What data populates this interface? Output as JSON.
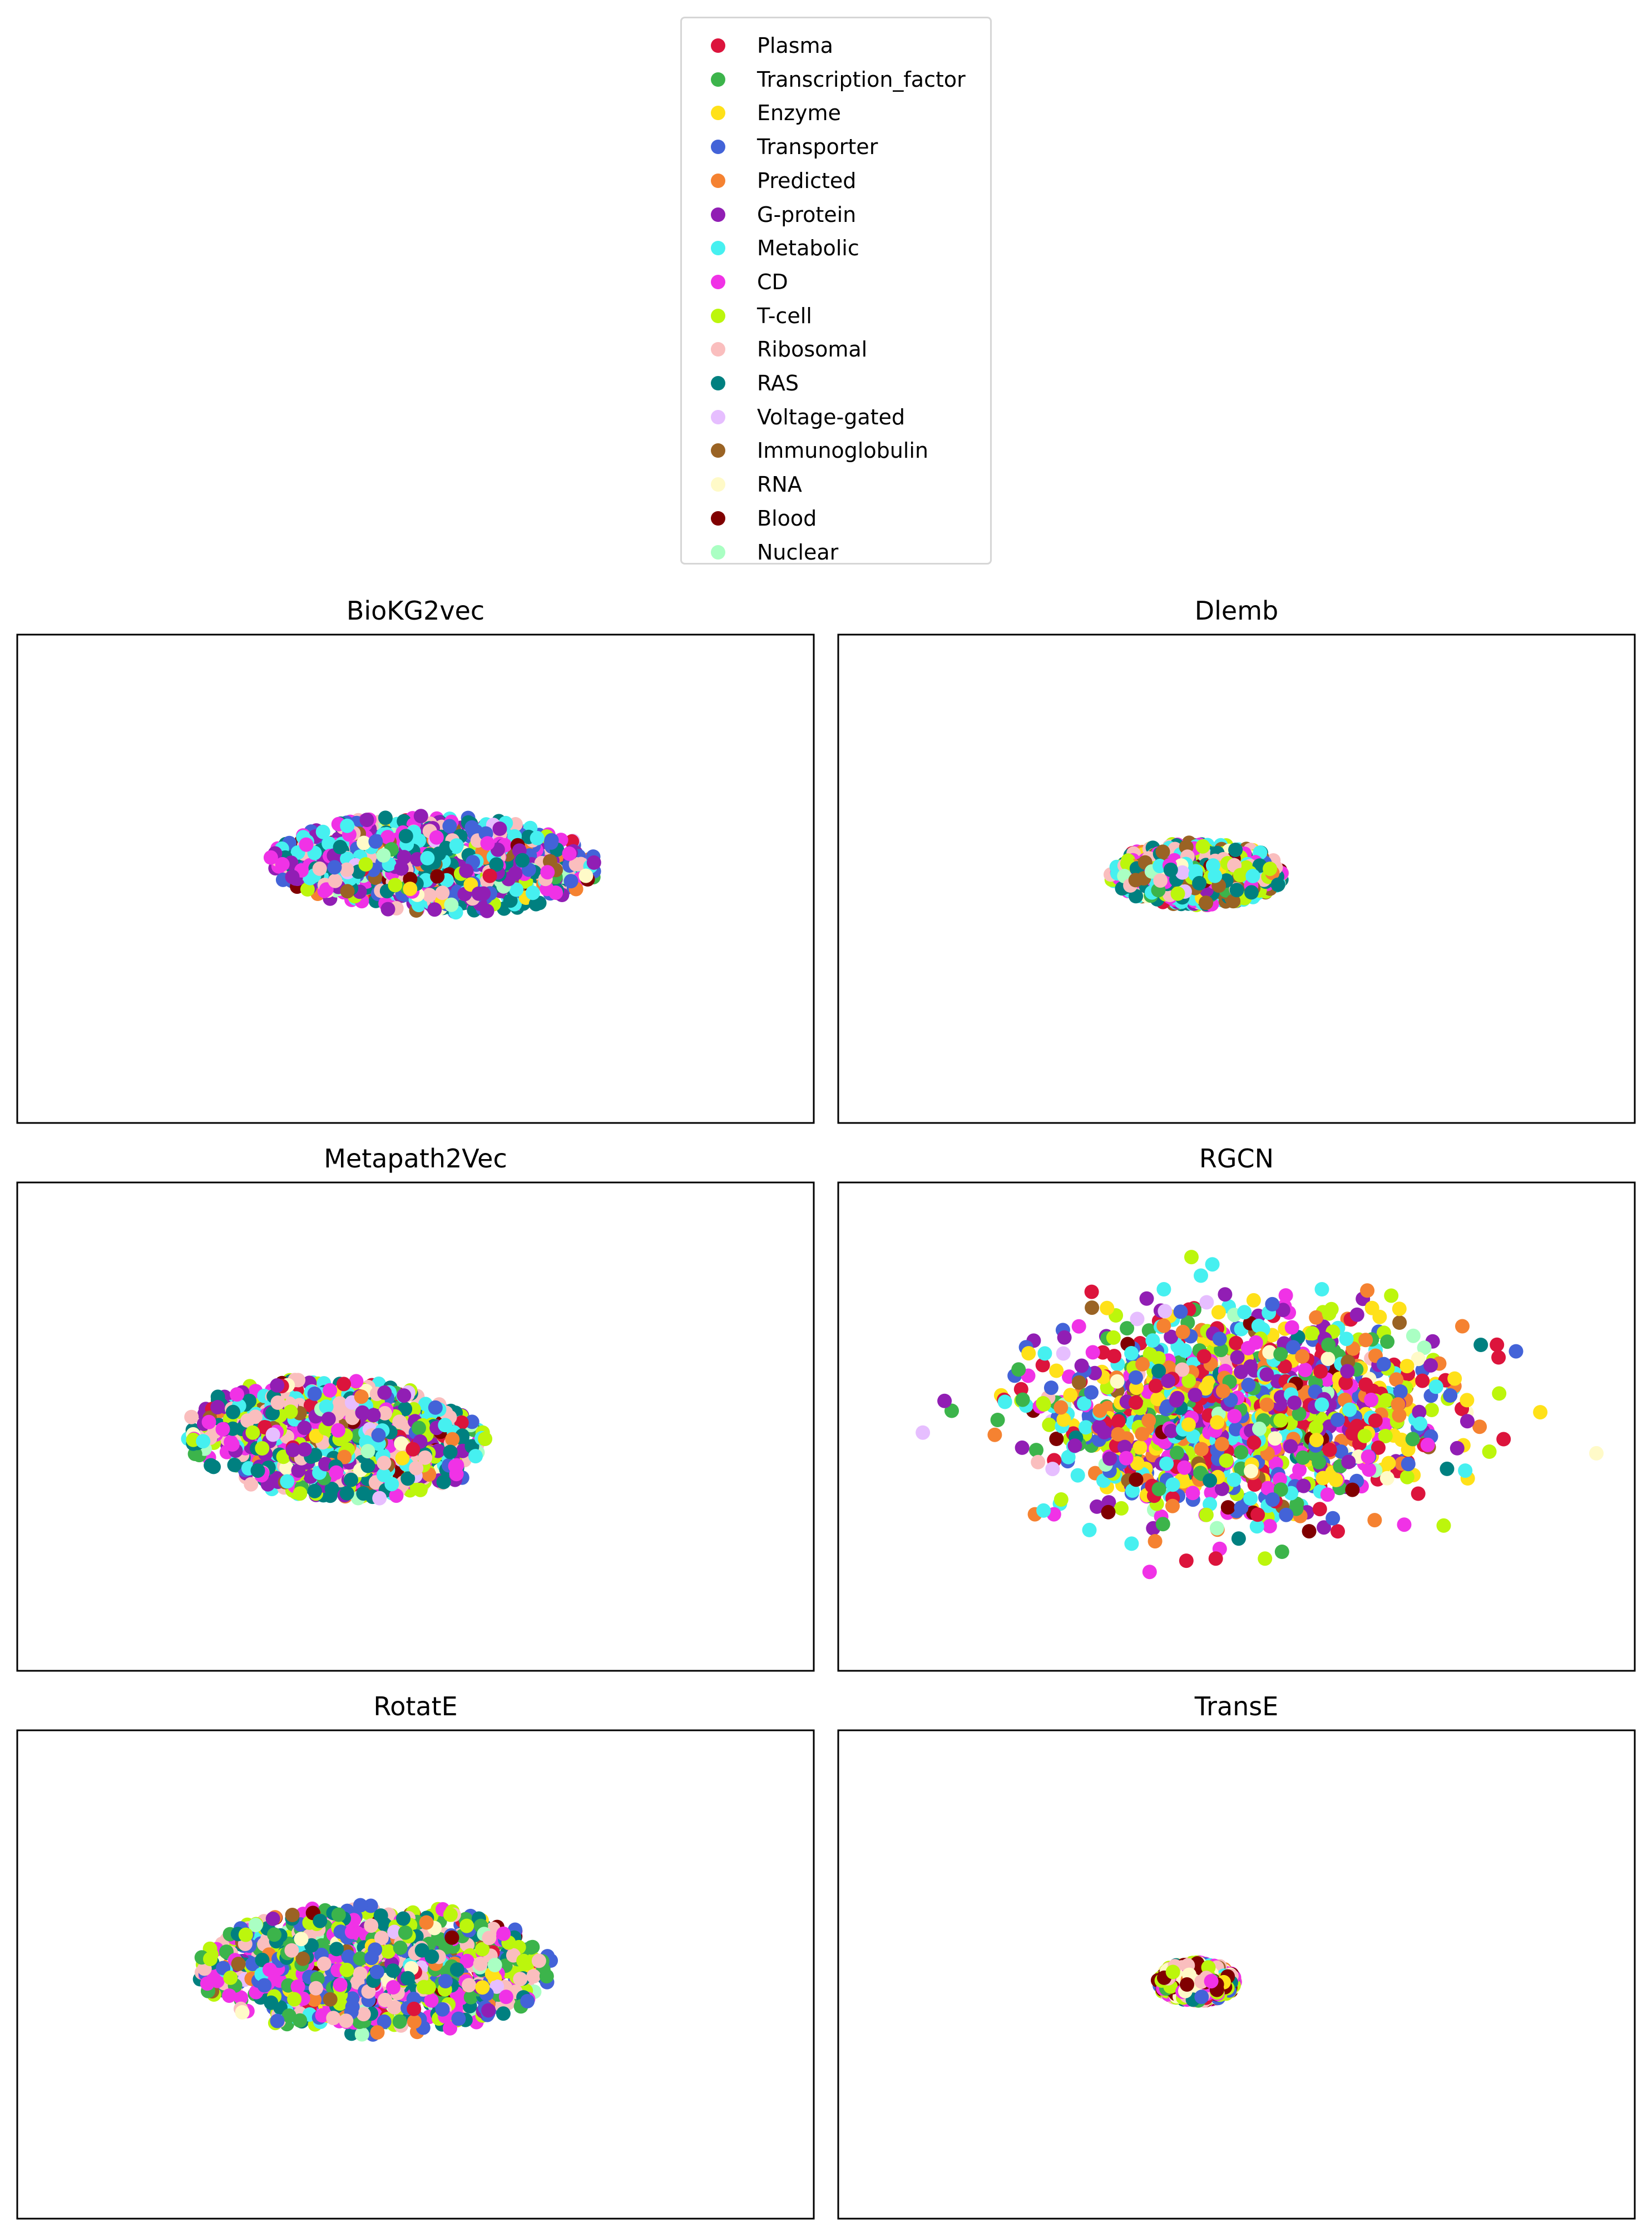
{
  "legend": {
    "items": [
      {
        "label": "Plasma",
        "color": "#dc143c"
      },
      {
        "label": "Transcription_factor",
        "color": "#3cb44b"
      },
      {
        "label": "Enzyme",
        "color": "#ffe119"
      },
      {
        "label": "Transporter",
        "color": "#4363d8"
      },
      {
        "label": "Predicted",
        "color": "#f58231"
      },
      {
        "label": "G-protein",
        "color": "#911eb4"
      },
      {
        "label": "Metabolic",
        "color": "#46f0f0"
      },
      {
        "label": "CD",
        "color": "#f032e6"
      },
      {
        "label": "T-cell",
        "color": "#bcf60c"
      },
      {
        "label": "Ribosomal",
        "color": "#fabebe"
      },
      {
        "label": "RAS",
        "color": "#008080"
      },
      {
        "label": "Voltage-gated",
        "color": "#e6beff"
      },
      {
        "label": "Immunoglobulin",
        "color": "#9a6324"
      },
      {
        "label": "RNA",
        "color": "#fffac8"
      },
      {
        "label": "Blood",
        "color": "#800000"
      },
      {
        "label": "Nuclear",
        "color": "#aaffc3"
      }
    ]
  },
  "chart_data": [
    {
      "type": "scatter",
      "title": "BioKG2vec",
      "xlim": [
        -1,
        1
      ],
      "ylim": [
        -1,
        1
      ],
      "grid": false,
      "axes_ticks": false,
      "cluster": {
        "center": [
          0.05,
          0.06
        ],
        "spread": [
          0.42,
          0.2
        ],
        "skew": -0.15
      },
      "dominant_classes": [
        "CD",
        "G-protein",
        "Metabolic",
        "Ribosomal",
        "RAS",
        "Transporter"
      ]
    },
    {
      "type": "scatter",
      "title": "Dlemb",
      "xlim": [
        -1,
        1
      ],
      "ylim": [
        -1,
        1
      ],
      "grid": false,
      "axes_ticks": false,
      "cluster": {
        "center": [
          -0.1,
          0.02
        ],
        "spread": [
          0.22,
          0.13
        ],
        "skew": 0.0
      },
      "dominant_classes": [
        "RAS",
        "Metabolic",
        "T-cell",
        "Immunoglobulin",
        "CD",
        "Ribosomal"
      ]
    },
    {
      "type": "scatter",
      "title": "Metapath2Vec",
      "xlim": [
        -1,
        1
      ],
      "ylim": [
        -1,
        1
      ],
      "grid": false,
      "axes_ticks": false,
      "cluster": {
        "center": [
          -0.2,
          -0.05
        ],
        "spread": [
          0.38,
          0.25
        ],
        "skew": -0.2
      },
      "dominant_classes": [
        "G-protein",
        "T-cell",
        "Metabolic",
        "Ribosomal",
        "CD",
        "RAS"
      ]
    },
    {
      "type": "scatter",
      "title": "RGCN",
      "xlim": [
        -1,
        1
      ],
      "ylim": [
        -1,
        1
      ],
      "grid": false,
      "axes_ticks": false,
      "cluster": {
        "center": [
          0.0,
          0.05
        ],
        "spread": [
          0.45,
          0.38
        ],
        "skew": 0.0
      },
      "dominant_classes": [
        "Plasma",
        "Transcription_factor",
        "Enzyme",
        "Transporter",
        "Predicted",
        "G-protein",
        "Metabolic",
        "CD",
        "T-cell"
      ]
    },
    {
      "type": "scatter",
      "title": "RotatE",
      "xlim": [
        -1,
        1
      ],
      "ylim": [
        -1,
        1
      ],
      "grid": false,
      "axes_ticks": false,
      "cluster": {
        "center": [
          -0.1,
          0.02
        ],
        "spread": [
          0.45,
          0.27
        ],
        "skew": 0.0
      },
      "dominant_classes": [
        "Transcription_factor",
        "CD",
        "Ribosomal",
        "T-cell",
        "Transporter",
        "RAS"
      ]
    },
    {
      "type": "scatter",
      "title": "TransE",
      "xlim": [
        -1,
        1
      ],
      "ylim": [
        -1,
        1
      ],
      "grid": false,
      "axes_ticks": false,
      "cluster": {
        "center": [
          -0.1,
          -0.03
        ],
        "spread": [
          0.1,
          0.08
        ],
        "skew": 0.0
      },
      "dominant_classes": [
        "CD",
        "Ribosomal",
        "RNA",
        "T-cell",
        "Blood"
      ]
    }
  ]
}
